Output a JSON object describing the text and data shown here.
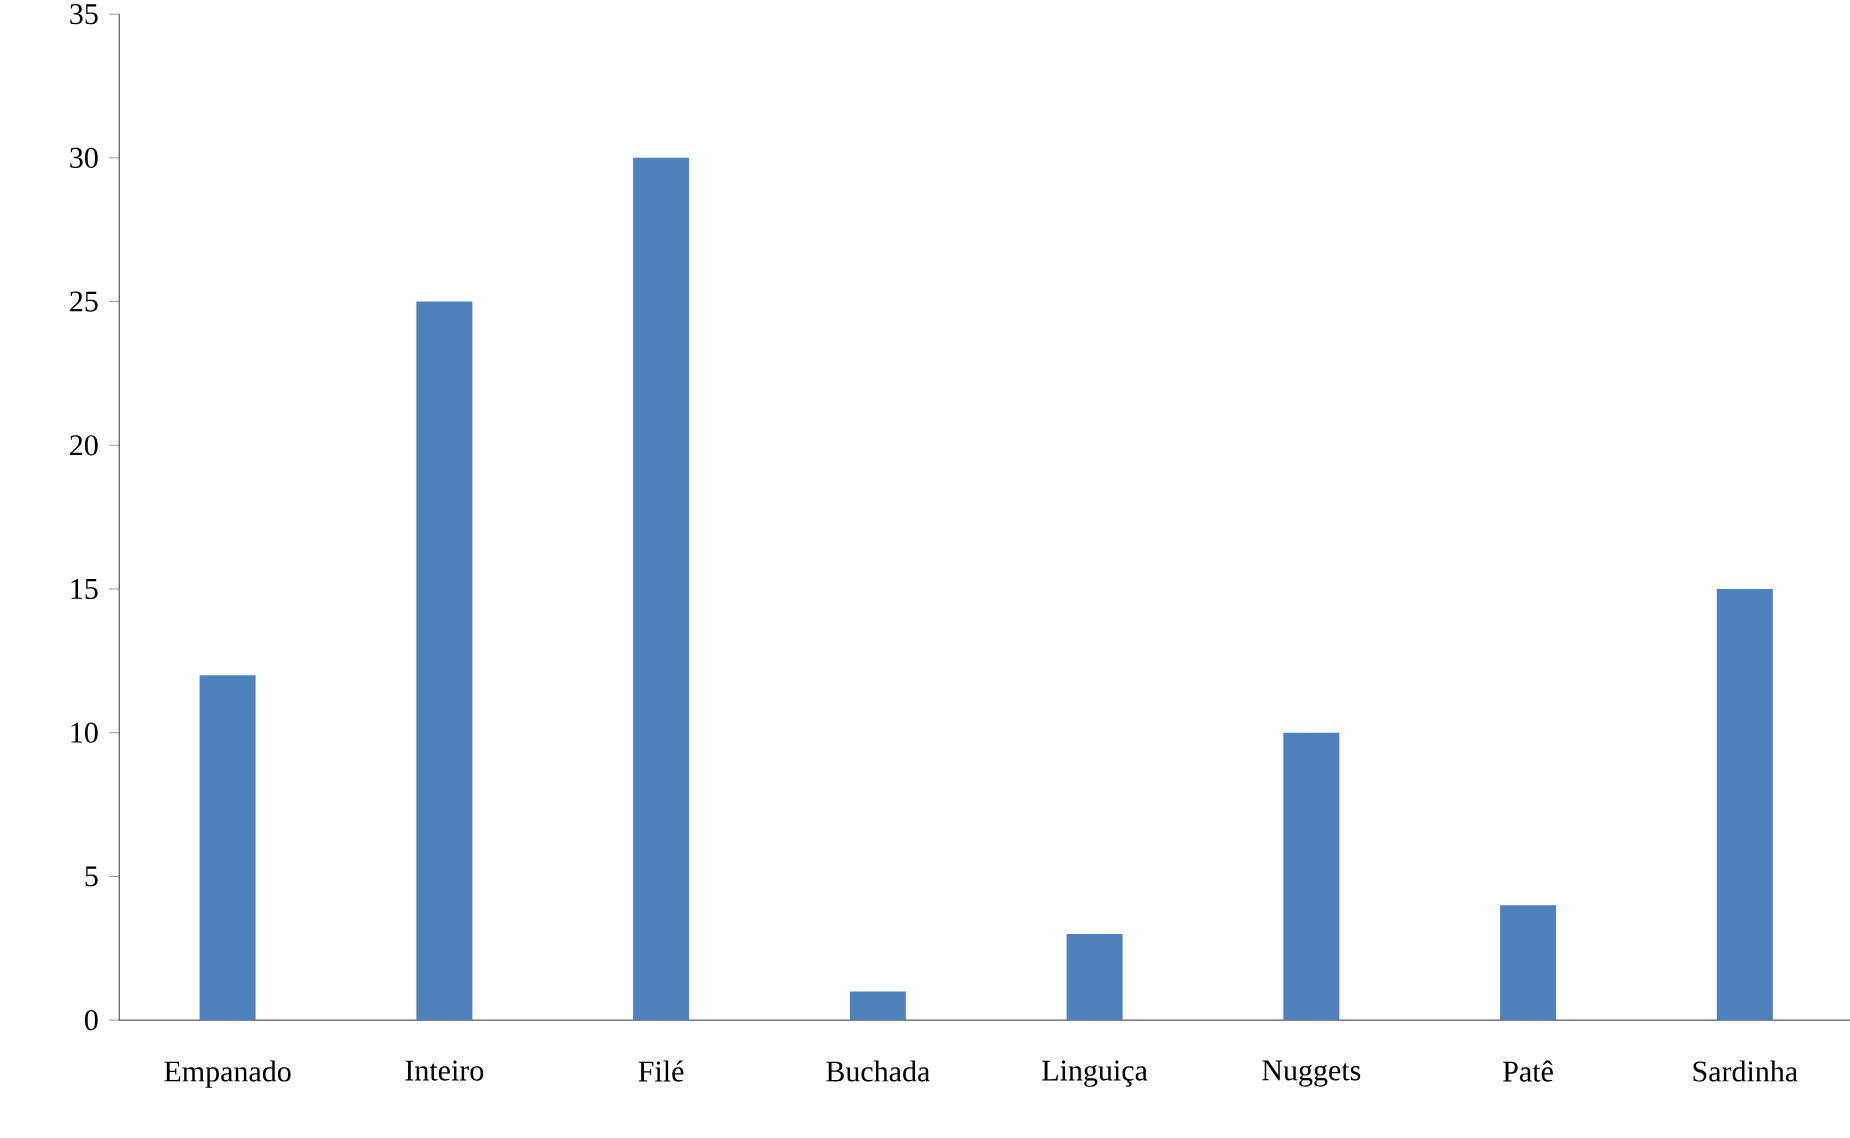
{
  "chart_data": {
    "type": "bar",
    "categories": [
      "Empanado",
      "Inteiro",
      "Filé",
      "Buchada",
      "Linguiça",
      "Nuggets",
      "Patê",
      "Sardinha"
    ],
    "values": [
      12,
      25,
      30,
      1,
      3,
      10,
      4,
      15
    ],
    "color": "#4f81bd",
    "ylim": [
      0,
      35
    ],
    "yticks": [
      0,
      5,
      10,
      15,
      20,
      25,
      30,
      35
    ],
    "grid": false
  }
}
